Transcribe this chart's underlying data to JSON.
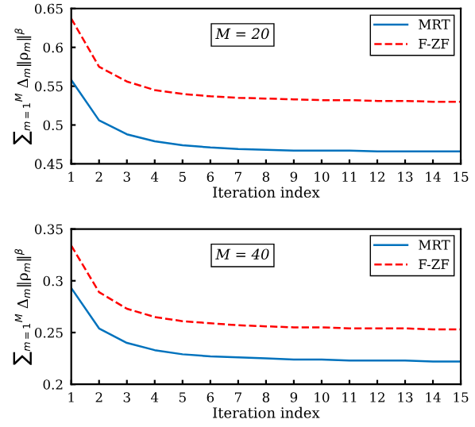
{
  "chart_data": [
    {
      "type": "line",
      "xlabel": "Iteration index",
      "ylabel": "∑$_{m=1}$$^{M}$ Δ$_{m}$‖ρ$_{m}$‖$^{β}$",
      "x": [
        1,
        2,
        3,
        4,
        5,
        6,
        7,
        8,
        9,
        10,
        11,
        12,
        13,
        14,
        15
      ],
      "xlim": [
        1,
        15
      ],
      "xticks": [
        1,
        2,
        3,
        4,
        5,
        6,
        7,
        8,
        9,
        10,
        11,
        12,
        13,
        14,
        15
      ],
      "ylim": [
        0.45,
        0.65
      ],
      "yticks": [
        0.45,
        0.5,
        0.55,
        0.6,
        0.65
      ],
      "legend": "top right",
      "grid": false,
      "marker": "none",
      "annotations": [
        "M = 20"
      ],
      "series": [
        {
          "name": "MRT",
          "color": "#0072bd",
          "line_style": "solid",
          "values": [
            0.558,
            0.506,
            0.488,
            0.479,
            0.474,
            0.471,
            0.469,
            0.468,
            0.467,
            0.467,
            0.467,
            0.466,
            0.466,
            0.466,
            0.466
          ]
        },
        {
          "name": "F-ZF",
          "color": "#ff0000",
          "line_style": "dashed",
          "values": [
            0.637,
            0.575,
            0.556,
            0.545,
            0.54,
            0.537,
            0.535,
            0.534,
            0.533,
            0.532,
            0.532,
            0.531,
            0.531,
            0.53,
            0.53
          ]
        }
      ]
    },
    {
      "type": "line",
      "xlabel": "Iteration index",
      "ylabel": "∑$_{m=1}$$^{M}$ Δ$_{m}$‖ρ$_{m}$‖$^{β}$",
      "x": [
        1,
        2,
        3,
        4,
        5,
        6,
        7,
        8,
        9,
        10,
        11,
        12,
        13,
        14,
        15
      ],
      "xlim": [
        1,
        15
      ],
      "xticks": [
        1,
        2,
        3,
        4,
        5,
        6,
        7,
        8,
        9,
        10,
        11,
        12,
        13,
        14,
        15
      ],
      "ylim": [
        0.2,
        0.35
      ],
      "yticks": [
        0.2,
        0.25,
        0.3,
        0.35
      ],
      "legend": "top right",
      "grid": false,
      "marker": "none",
      "annotations": [
        "M = 40"
      ],
      "series": [
        {
          "name": "MRT",
          "color": "#0072bd",
          "line_style": "solid",
          "values": [
            0.293,
            0.254,
            0.24,
            0.233,
            0.229,
            0.227,
            0.226,
            0.225,
            0.224,
            0.224,
            0.223,
            0.223,
            0.223,
            0.222,
            0.222
          ]
        },
        {
          "name": "F-ZF",
          "color": "#ff0000",
          "line_style": "dashed",
          "values": [
            0.334,
            0.289,
            0.273,
            0.265,
            0.261,
            0.259,
            0.257,
            0.256,
            0.255,
            0.255,
            0.254,
            0.254,
            0.254,
            0.253,
            0.253
          ]
        }
      ]
    }
  ]
}
